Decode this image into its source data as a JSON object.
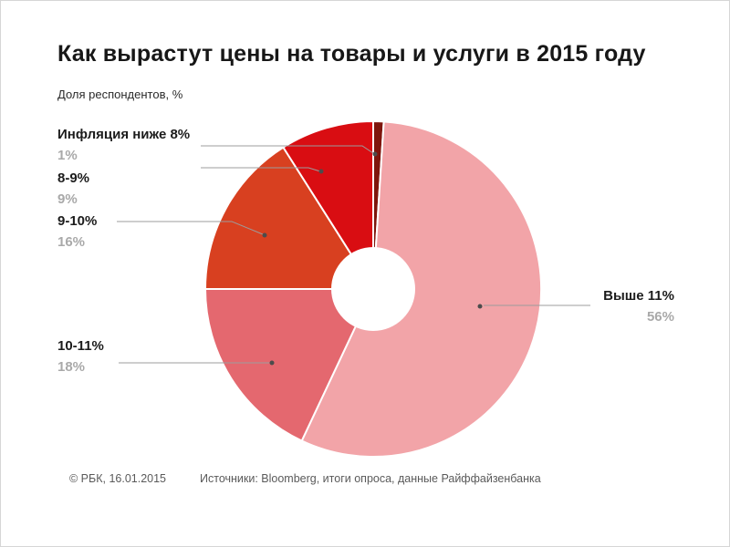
{
  "page": {
    "title": "Как вырастут цены на товары и услуги в 2015 году",
    "subtitle": "Доля респондентов, %",
    "footer": {
      "copyright": "© РБК, 16.01.2015",
      "sources": "Источники: Bloomberg, итоги опроса, данные Райффайзенбанка"
    }
  },
  "chart_data": {
    "type": "pie",
    "donut": true,
    "title": "Как вырастут цены на товары и услуги в 2015 году",
    "units_label": "Доля респондентов, %",
    "direction": "clockwise",
    "start_angle_deg": 0,
    "legend_position": "callouts",
    "slices": [
      {
        "label": "Инфляция ниже 8%",
        "value": 1,
        "pct_label": "1%",
        "color": "#7f150c"
      },
      {
        "label": "Выше 11%",
        "value": 56,
        "pct_label": "56%",
        "color": "#f2a4a8"
      },
      {
        "label": "10-11%",
        "value": 18,
        "pct_label": "18%",
        "color": "#e4686f"
      },
      {
        "label": "9-10%",
        "value": 16,
        "pct_label": "16%",
        "color": "#d84020"
      },
      {
        "label": "8-9%",
        "value": 9,
        "pct_label": "9%",
        "color": "#d90d12"
      }
    ]
  }
}
